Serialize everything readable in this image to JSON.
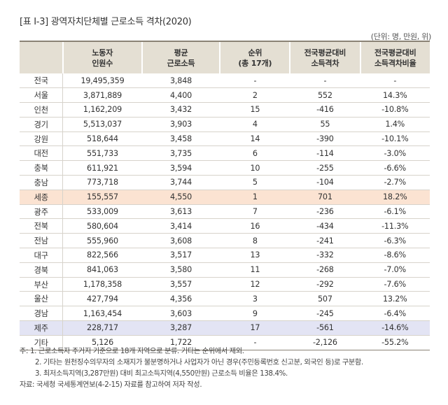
{
  "title": "[표 Ⅰ-3] 광역자치단체별 근로소득 격차(2020)",
  "unit": "(단위: 명, 만원, 위)",
  "table": {
    "headers": [
      "",
      "노동자\n인원수",
      "평균\n근로소득",
      "순위\n(총 17개)",
      "전국평균대비\n소득격차",
      "전국평균대비\n소득격차비율"
    ],
    "rows": [
      {
        "region": "전국",
        "workers": "19,495,359",
        "avg_income": "3,848",
        "rank": "-",
        "gap": "-",
        "gap_ratio": "-"
      },
      {
        "region": "서울",
        "workers": "3,871,889",
        "avg_income": "4,400",
        "rank": "2",
        "gap": "552",
        "gap_ratio": "14.3%"
      },
      {
        "region": "인천",
        "workers": "1,162,209",
        "avg_income": "3,432",
        "rank": "15",
        "gap": "-416",
        "gap_ratio": "-10.8%"
      },
      {
        "region": "경기",
        "workers": "5,513,037",
        "avg_income": "3,903",
        "rank": "4",
        "gap": "55",
        "gap_ratio": "1.4%"
      },
      {
        "region": "강원",
        "workers": "518,644",
        "avg_income": "3,458",
        "rank": "14",
        "gap": "-390",
        "gap_ratio": "-10.1%"
      },
      {
        "region": "대전",
        "workers": "551,733",
        "avg_income": "3,735",
        "rank": "6",
        "gap": "-114",
        "gap_ratio": "-3.0%"
      },
      {
        "region": "충북",
        "workers": "611,921",
        "avg_income": "3,594",
        "rank": "10",
        "gap": "-255",
        "gap_ratio": "-6.6%"
      },
      {
        "region": "충남",
        "workers": "773,718",
        "avg_income": "3,744",
        "rank": "5",
        "gap": "-104",
        "gap_ratio": "-2.7%"
      },
      {
        "region": "세종",
        "workers": "155,557",
        "avg_income": "4,550",
        "rank": "1",
        "gap": "701",
        "gap_ratio": "18.2%",
        "highlight": "orange"
      },
      {
        "region": "광주",
        "workers": "533,009",
        "avg_income": "3,613",
        "rank": "7",
        "gap": "-236",
        "gap_ratio": "-6.1%"
      },
      {
        "region": "전북",
        "workers": "580,604",
        "avg_income": "3,414",
        "rank": "16",
        "gap": "-434",
        "gap_ratio": "-11.3%"
      },
      {
        "region": "전남",
        "workers": "555,960",
        "avg_income": "3,608",
        "rank": "8",
        "gap": "-241",
        "gap_ratio": "-6.3%"
      },
      {
        "region": "대구",
        "workers": "822,566",
        "avg_income": "3,517",
        "rank": "13",
        "gap": "-332",
        "gap_ratio": "-8.6%"
      },
      {
        "region": "경북",
        "workers": "841,063",
        "avg_income": "3,580",
        "rank": "11",
        "gap": "-268",
        "gap_ratio": "-7.0%"
      },
      {
        "region": "부산",
        "workers": "1,178,358",
        "avg_income": "3,557",
        "rank": "12",
        "gap": "-292",
        "gap_ratio": "-7.6%"
      },
      {
        "region": "울산",
        "workers": "427,794",
        "avg_income": "4,356",
        "rank": "3",
        "gap": "507",
        "gap_ratio": "13.2%"
      },
      {
        "region": "경남",
        "workers": "1,163,454",
        "avg_income": "3,603",
        "rank": "9",
        "gap": "-245",
        "gap_ratio": "-6.4%"
      },
      {
        "region": "제주",
        "workers": "228,717",
        "avg_income": "3,287",
        "rank": "17",
        "gap": "-561",
        "gap_ratio": "-14.6%",
        "highlight": "blue"
      },
      {
        "region": "기타",
        "workers": "5,126",
        "avg_income": "1,722",
        "rank": "-",
        "gap": "-2,126",
        "gap_ratio": "-55.2%"
      }
    ]
  },
  "notes": [
    "주: 1. 근로소득자 주거지 기준으로 18개 지역으로 분류. 기타는 순위에서 제외.",
    "2. 기타는 원천징수의무자의 소재지가 불분명하거나 사업자가 아닌 경우(주민등록번호 신고분, 외국인 등)로 구분함.",
    "3. 최저소득지역(3,287만원) 대비 최고소득지역(4,550만원) 근로소득 비율은 138.4%.",
    "자료: 국세청 국세통계연보(4-2-15) 자료를 참고하여 저자 작성."
  ],
  "colors": {
    "header_bg": "#e4dfd3",
    "highlight_orange": "#fbe3d2",
    "highlight_blue": "#e3e4f4",
    "rule": "#8a8375"
  }
}
